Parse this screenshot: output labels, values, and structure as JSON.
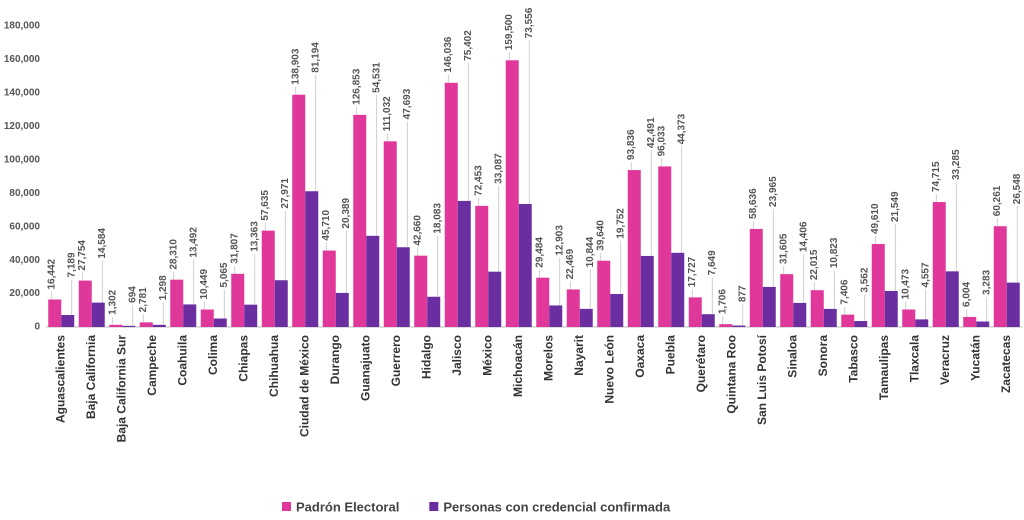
{
  "chart_data": {
    "type": "bar",
    "categories": [
      "Aguascalientes",
      "Baja California",
      "Baja California Sur",
      "Campeche",
      "Coahuila",
      "Colima",
      "Chiapas",
      "Chihuahua",
      "Ciudad de México",
      "Durango",
      "Guanajuato",
      "Guerrero",
      "Hidalgo",
      "Jalisco",
      "México",
      "Michoacán",
      "Morelos",
      "Nayarit",
      "Nuevo León",
      "Oaxaca",
      "Puebla",
      "Querétaro",
      "Quintana Roo",
      "San Luis Potosí",
      "Sinaloa",
      "Sonora",
      "Tabasco",
      "Tamaulipas",
      "Tlaxcala",
      "Veracruz",
      "Yucatán",
      "Zacatecas"
    ],
    "series": [
      {
        "name": "Padrón Electoral",
        "color": "#e0379b",
        "values": [
          16442,
          27754,
          1302,
          2781,
          28310,
          10449,
          31807,
          57635,
          138903,
          45710,
          126853,
          111032,
          42660,
          146036,
          72453,
          159500,
          29484,
          22469,
          39640,
          93836,
          96033,
          17727,
          1706,
          58636,
          31605,
          22015,
          7406,
          49610,
          10473,
          74715,
          6004,
          60261
        ],
        "value_labels": [
          "16,442",
          "27,754",
          "1,302",
          "2,781",
          "28,310",
          "10,449",
          "31,807",
          "57,635",
          "138,903",
          "45,710",
          "126,853",
          "111,032",
          "42,660",
          "146,036",
          "72,453",
          "159,500",
          "29,484",
          "22,469",
          "39,640",
          "93,836",
          "96,033",
          "17,727",
          "1,706",
          "58,636",
          "31,605",
          "22,015",
          "7,406",
          "49,610",
          "10,473",
          "74,715",
          "6,004",
          "60,261"
        ]
      },
      {
        "name": "Personas con credencial confirmada",
        "color": "#6a2ea0",
        "values": [
          7189,
          14584,
          694,
          1298,
          13492,
          5065,
          13363,
          27971,
          81194,
          20389,
          54531,
          47693,
          18083,
          75402,
          33087,
          73556,
          12903,
          10844,
          19752,
          42491,
          44373,
          7649,
          877,
          23965,
          14406,
          10823,
          3562,
          21549,
          4557,
          33285,
          3283,
          26548
        ],
        "value_labels": [
          "7,189",
          "14,584",
          "694",
          "1,298",
          "13,492",
          "5,065",
          "13,363",
          "27,971",
          "81,194",
          "20,389",
          "54,531",
          "47,693",
          "18,083",
          "75,402",
          "33,087",
          "73,556",
          "12,903",
          "10,844",
          "19,752",
          "42,491",
          "44,373",
          "7,649",
          "877",
          "23,965",
          "14,406",
          "10,823",
          "3,562",
          "21,549",
          "4,557",
          "33,285",
          "3,283",
          "26,548"
        ]
      }
    ],
    "ylim": [
      0,
      180000
    ],
    "yticks": [
      0,
      {
        "value": 20000,
        "label": "20,000"
      },
      {
        "value": 40000,
        "label": "40,000"
      },
      {
        "value": 60000,
        "label": "60,000"
      },
      {
        "value": 80000,
        "label": "80,000"
      },
      {
        "value": 100000,
        "label": "100,000"
      },
      {
        "value": 120000,
        "label": "120,000"
      },
      {
        "value": 140000,
        "label": "140,000"
      },
      {
        "value": 160000,
        "label": "160,000"
      },
      {
        "value": 180000,
        "label": "180,000"
      }
    ],
    "grid": false
  }
}
